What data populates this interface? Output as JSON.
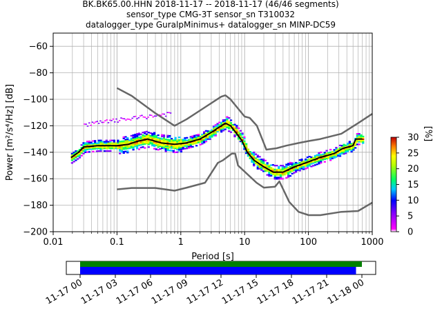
{
  "chart_data": {
    "type": "heatmap",
    "title_lines": [
      "BK.BK65.00.HHN   2018-11-17 -- 2018-11-17  (46/46 segments)",
      "sensor_type CMG-3T sensor_sn T310032",
      "datalogger_type GuralpMinimus+ datalogger_sn MINP-DC59"
    ],
    "xlabel": "Period [s]",
    "ylabel": "Power [m²/s⁴/Hz] [dB]",
    "x_scale": "log",
    "xlim": [
      0.01,
      1000
    ],
    "ylim": [
      -200,
      -50
    ],
    "x_tick_labels": [
      "0.01",
      "0.1",
      "1",
      "10",
      "100",
      "1000"
    ],
    "y_tick_labels": [
      "-60",
      "-80",
      "-100",
      "-120",
      "-140",
      "-160",
      "-180",
      "-200"
    ],
    "y_ticks": [
      -60,
      -80,
      -100,
      -120,
      -140,
      -160,
      -180,
      -200
    ],
    "grid": true,
    "colorbar": {
      "label": "[%]",
      "range": [
        0,
        30
      ],
      "tick_labels": [
        "0",
        "5",
        "10",
        "15",
        "20",
        "25",
        "30"
      ],
      "ticks": [
        0,
        5,
        10,
        15,
        20,
        25,
        30
      ]
    },
    "series": [
      {
        "role": "mean PSD",
        "color": "#000000",
        "points": [
          [
            0.019,
            -144
          ],
          [
            0.025,
            -140
          ],
          [
            0.03,
            -136
          ],
          [
            0.05,
            -135
          ],
          [
            0.1,
            -135
          ],
          [
            0.15,
            -134
          ],
          [
            0.2,
            -132
          ],
          [
            0.3,
            -130
          ],
          [
            0.5,
            -133
          ],
          [
            0.8,
            -134
          ],
          [
            1.2,
            -133
          ],
          [
            2,
            -130
          ],
          [
            3,
            -125
          ],
          [
            4,
            -121
          ],
          [
            5,
            -118
          ],
          [
            6,
            -120
          ],
          [
            7,
            -124
          ],
          [
            9,
            -131
          ],
          [
            11,
            -140
          ],
          [
            14,
            -146
          ],
          [
            20,
            -151
          ],
          [
            28,
            -155
          ],
          [
            40,
            -155
          ],
          [
            60,
            -151
          ],
          [
            90,
            -148
          ],
          [
            150,
            -144
          ],
          [
            250,
            -141
          ],
          [
            350,
            -137
          ],
          [
            500,
            -135
          ],
          [
            550,
            -130
          ],
          [
            700,
            -130
          ]
        ]
      },
      {
        "role": "NHNM",
        "color": "#666666",
        "points": [
          [
            0.1,
            -91.5
          ],
          [
            0.17,
            -97.4
          ],
          [
            0.4,
            -110.5
          ],
          [
            0.8,
            -120
          ],
          [
            1.24,
            -115
          ],
          [
            2.4,
            -106
          ],
          [
            4.3,
            -98
          ],
          [
            5,
            -97
          ],
          [
            6,
            -100
          ],
          [
            10,
            -113
          ],
          [
            12,
            -114
          ],
          [
            15.6,
            -120
          ],
          [
            21.9,
            -138
          ],
          [
            31.6,
            -137
          ],
          [
            45,
            -135
          ],
          [
            70,
            -133
          ],
          [
            101,
            -131.5
          ],
          [
            154,
            -130
          ],
          [
            328,
            -126
          ],
          [
            600,
            -118
          ],
          [
            1000,
            -111
          ]
        ]
      },
      {
        "role": "NLNM",
        "color": "#666666",
        "points": [
          [
            0.1,
            -168
          ],
          [
            0.17,
            -167
          ],
          [
            0.4,
            -167
          ],
          [
            0.8,
            -169
          ],
          [
            1.24,
            -166.7
          ],
          [
            2.4,
            -163
          ],
          [
            3.8,
            -148
          ],
          [
            4.6,
            -146
          ],
          [
            6.3,
            -141
          ],
          [
            7.1,
            -141
          ],
          [
            7.9,
            -150
          ],
          [
            15.4,
            -163
          ],
          [
            20,
            -166.7
          ],
          [
            30,
            -166
          ],
          [
            35,
            -162
          ],
          [
            50,
            -177.5
          ],
          [
            70,
            -185
          ],
          [
            101,
            -187.5
          ],
          [
            154,
            -187.5
          ],
          [
            328,
            -185
          ],
          [
            600,
            -184.4
          ],
          [
            1000,
            -178
          ]
        ]
      }
    ],
    "time_axis": {
      "tick_labels": [
        "11-17 00",
        "11-17 03",
        "11-17 06",
        "11-17 09",
        "11-17 12",
        "11-17 15",
        "11-17 18",
        "11-17 21",
        "11-18 00"
      ],
      "range": [
        "2018-11-17 00:00",
        "2018-11-18 00:00"
      ],
      "bars": [
        {
          "role": "data coverage",
          "color": "#008000",
          "start": "2018-11-17 00:00",
          "end": "2018-11-18 00:00"
        },
        {
          "role": "PSD segments used",
          "color": "#0000ff",
          "start": "2018-11-17 00:00",
          "end": "2018-11-17 23:30"
        }
      ]
    }
  }
}
